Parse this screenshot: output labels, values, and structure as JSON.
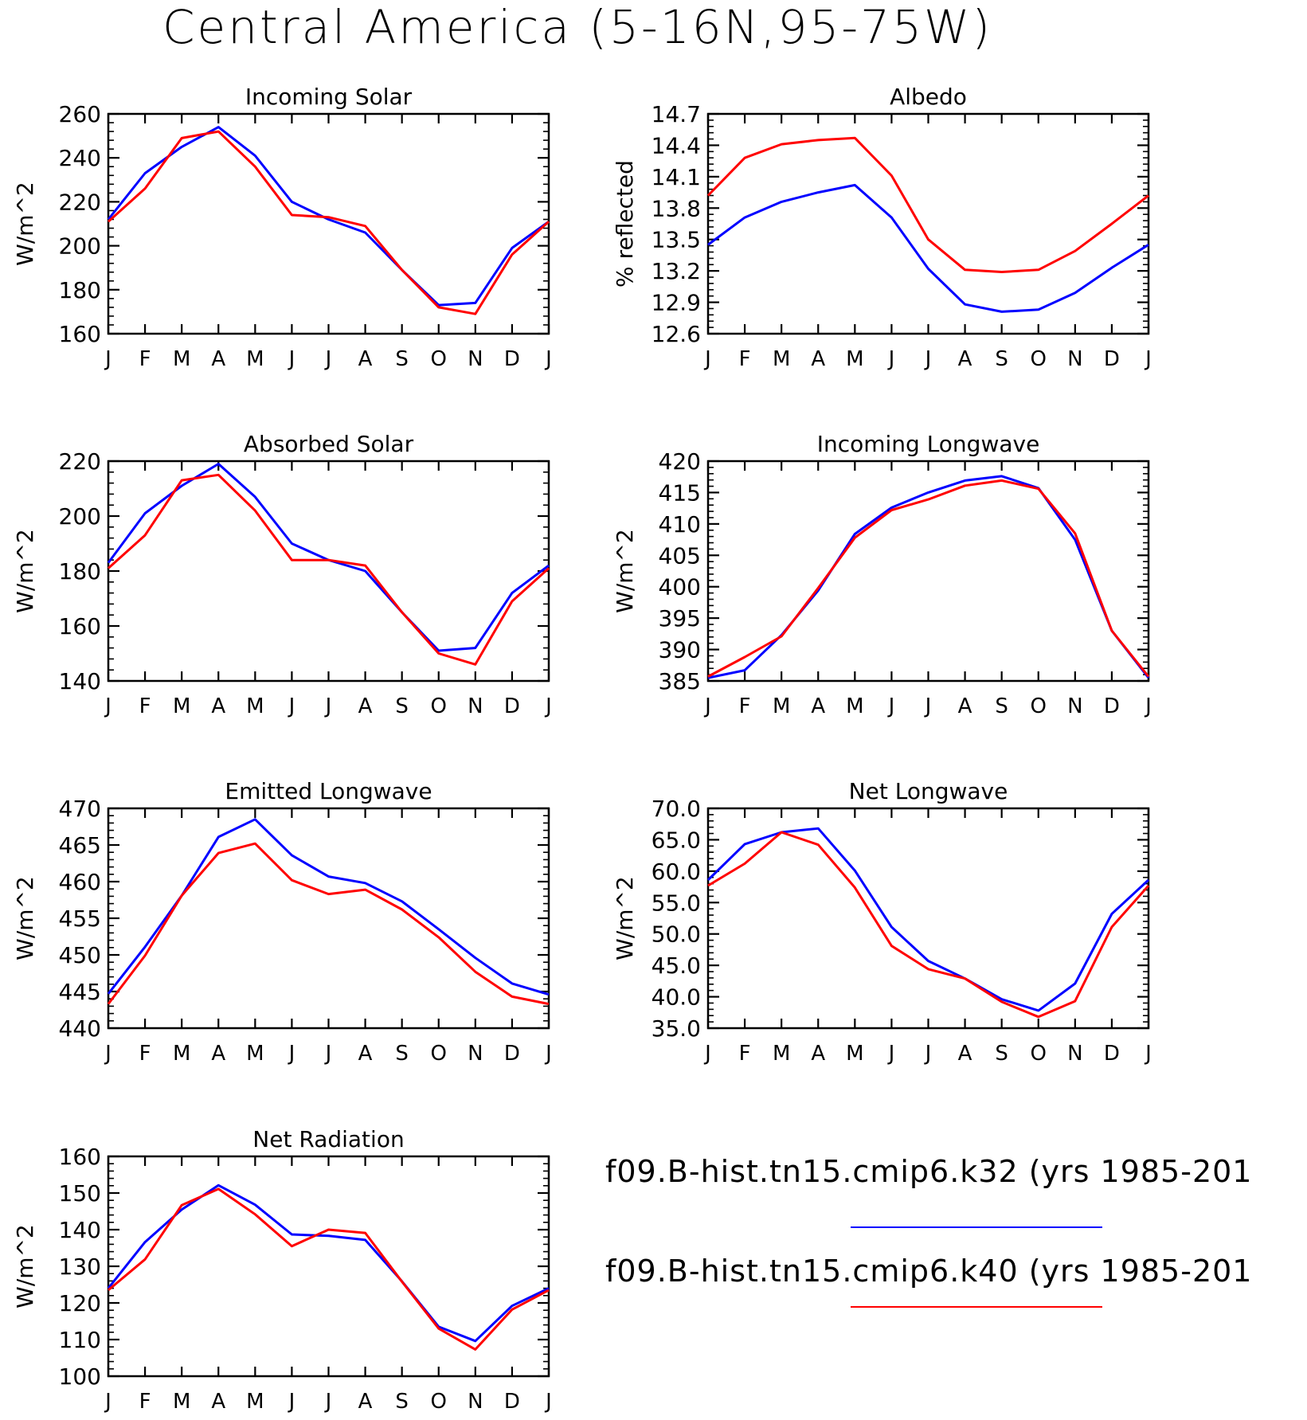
{
  "page_title": "Central America (5-16N,95-75W)",
  "months": [
    "J",
    "F",
    "M",
    "A",
    "M",
    "J",
    "J",
    "A",
    "S",
    "O",
    "N",
    "D",
    "J"
  ],
  "series_colors": {
    "k32": "#0000ff",
    "k40": "#ff0000"
  },
  "legend": {
    "items": [
      {
        "label": "f09.B-hist.tn15.cmip6.k32 (yrs 1985-201",
        "color": "#0000ff"
      },
      {
        "label": "f09.B-hist.tn15.cmip6.k40 (yrs 1985-201",
        "color": "#ff0000"
      }
    ]
  },
  "chart_data": [
    {
      "type": "line",
      "title": "Incoming Solar",
      "ylabel": "W/m^2",
      "ylim": [
        160,
        260
      ],
      "yticks": [
        160,
        180,
        200,
        220,
        240,
        260
      ],
      "ytick_labels": [
        "160",
        "180",
        "200",
        "220",
        "240",
        "260"
      ],
      "categories": [
        "J",
        "F",
        "M",
        "A",
        "M",
        "J",
        "J",
        "A",
        "S",
        "O",
        "N",
        "D",
        "J"
      ],
      "series": [
        {
          "color": "#0000ff",
          "values": [
            212,
            233,
            245,
            254,
            241,
            220,
            212,
            206,
            189,
            173,
            174,
            199,
            211
          ]
        },
        {
          "color": "#ff0000",
          "values": [
            211,
            226,
            249,
            252,
            236,
            214,
            213,
            209,
            189,
            172,
            169,
            196,
            211
          ]
        }
      ]
    },
    {
      "type": "line",
      "title": "Albedo",
      "ylabel": "% reflected",
      "ylim": [
        12.6,
        14.7
      ],
      "yticks": [
        12.6,
        12.9,
        13.2,
        13.5,
        13.8,
        14.1,
        14.4,
        14.7
      ],
      "ytick_labels": [
        "12.6",
        "12.9",
        "13.2",
        "13.5",
        "13.8",
        "14.1",
        "14.4",
        "14.7"
      ],
      "categories": [
        "J",
        "F",
        "M",
        "A",
        "M",
        "J",
        "J",
        "A",
        "S",
        "O",
        "N",
        "D",
        "J"
      ],
      "series": [
        {
          "color": "#0000ff",
          "values": [
            13.45,
            13.71,
            13.86,
            13.95,
            14.02,
            13.71,
            13.22,
            12.88,
            12.81,
            12.83,
            12.99,
            13.23,
            13.45
          ]
        },
        {
          "color": "#ff0000",
          "values": [
            13.92,
            14.28,
            14.41,
            14.45,
            14.47,
            14.11,
            13.5,
            13.21,
            13.19,
            13.21,
            13.39,
            13.65,
            13.92
          ]
        }
      ]
    },
    {
      "type": "line",
      "title": "Absorbed Solar",
      "ylabel": "W/m^2",
      "ylim": [
        140,
        220
      ],
      "yticks": [
        140,
        160,
        180,
        200,
        220
      ],
      "ytick_labels": [
        "140",
        "160",
        "180",
        "200",
        "220"
      ],
      "categories": [
        "J",
        "F",
        "M",
        "A",
        "M",
        "J",
        "J",
        "A",
        "S",
        "O",
        "N",
        "D",
        "J"
      ],
      "series": [
        {
          "color": "#0000ff",
          "values": [
            183,
            201,
            211,
            219,
            207,
            190,
            184,
            180,
            165,
            151,
            152,
            172,
            182
          ]
        },
        {
          "color": "#ff0000",
          "values": [
            181,
            193,
            213,
            215,
            202,
            184,
            184,
            182,
            165,
            150,
            146,
            169,
            181
          ]
        }
      ]
    },
    {
      "type": "line",
      "title": "Incoming Longwave",
      "ylabel": "W/m^2",
      "ylim": [
        385,
        420
      ],
      "yticks": [
        385,
        390,
        395,
        400,
        405,
        410,
        415,
        420
      ],
      "ytick_labels": [
        "385",
        "390",
        "395",
        "400",
        "405",
        "410",
        "415",
        "420"
      ],
      "categories": [
        "J",
        "F",
        "M",
        "A",
        "M",
        "J",
        "J",
        "A",
        "S",
        "O",
        "N",
        "D",
        "J"
      ],
      "series": [
        {
          "color": "#0000ff",
          "values": [
            385.5,
            386.7,
            392.3,
            399.4,
            408.4,
            412.6,
            415,
            416.9,
            417.6,
            415.7,
            407.5,
            393,
            385.5
          ]
        },
        {
          "color": "#ff0000",
          "values": [
            385.7,
            388.8,
            392.1,
            399.8,
            407.8,
            412.2,
            413.9,
            416.1,
            416.9,
            415.6,
            408.5,
            393,
            385.7
          ]
        }
      ]
    },
    {
      "type": "line",
      "title": "Emitted Longwave",
      "ylabel": "W/m^2",
      "ylim": [
        440,
        470
      ],
      "yticks": [
        440,
        445,
        450,
        455,
        460,
        465,
        470
      ],
      "ytick_labels": [
        "440",
        "445",
        "450",
        "455",
        "460",
        "465",
        "470"
      ],
      "categories": [
        "J",
        "F",
        "M",
        "A",
        "M",
        "J",
        "J",
        "A",
        "S",
        "O",
        "N",
        "D",
        "J"
      ],
      "series": [
        {
          "color": "#0000ff",
          "values": [
            444.7,
            451.1,
            458.1,
            466.1,
            468.5,
            463.6,
            460.7,
            459.8,
            457.3,
            453.5,
            449.6,
            446.1,
            444.6
          ]
        },
        {
          "color": "#ff0000",
          "values": [
            443.3,
            449.9,
            458.1,
            463.9,
            465.2,
            460.2,
            458.3,
            458.9,
            456.2,
            452.4,
            447.7,
            444.3,
            443.3
          ]
        }
      ]
    },
    {
      "type": "line",
      "title": "Net Longwave",
      "ylabel": "W/m^2",
      "ylim": [
        35,
        70
      ],
      "yticks": [
        35,
        40,
        45,
        50,
        55,
        60,
        65,
        70
      ],
      "ytick_labels": [
        "35.0",
        "40.0",
        "45.0",
        "50.0",
        "55.0",
        "60.0",
        "65.0",
        "70.0"
      ],
      "categories": [
        "J",
        "F",
        "M",
        "A",
        "M",
        "J",
        "J",
        "A",
        "S",
        "O",
        "N",
        "D",
        "J"
      ],
      "series": [
        {
          "color": "#0000ff",
          "values": [
            58.6,
            64.3,
            66.2,
            66.8,
            60.1,
            51.1,
            45.7,
            42.9,
            39.6,
            37.8,
            42.1,
            53.2,
            58.6
          ]
        },
        {
          "color": "#ff0000",
          "values": [
            57.7,
            61.2,
            66.2,
            64.2,
            57.4,
            48.1,
            44.4,
            42.9,
            39.2,
            36.8,
            39.3,
            51.1,
            57.7
          ]
        }
      ]
    },
    {
      "type": "line",
      "title": "Net Radiation",
      "ylabel": "W/m^2",
      "ylim": [
        100,
        160
      ],
      "yticks": [
        100,
        110,
        120,
        130,
        140,
        150,
        160
      ],
      "ytick_labels": [
        "100",
        "110",
        "120",
        "130",
        "140",
        "150",
        "160"
      ],
      "categories": [
        "J",
        "F",
        "M",
        "A",
        "M",
        "J",
        "J",
        "A",
        "S",
        "O",
        "N",
        "D",
        "J"
      ],
      "series": [
        {
          "color": "#0000ff",
          "values": [
            124,
            136.6,
            145.5,
            152.1,
            146.8,
            138.7,
            138.3,
            137.2,
            125.9,
            113.5,
            109.6,
            119.2,
            124
          ]
        },
        {
          "color": "#ff0000",
          "values": [
            123.5,
            131.9,
            146.7,
            151.1,
            144.2,
            135.5,
            140,
            139.1,
            125.8,
            113,
            107.3,
            118.2,
            123.5
          ]
        }
      ]
    }
  ]
}
